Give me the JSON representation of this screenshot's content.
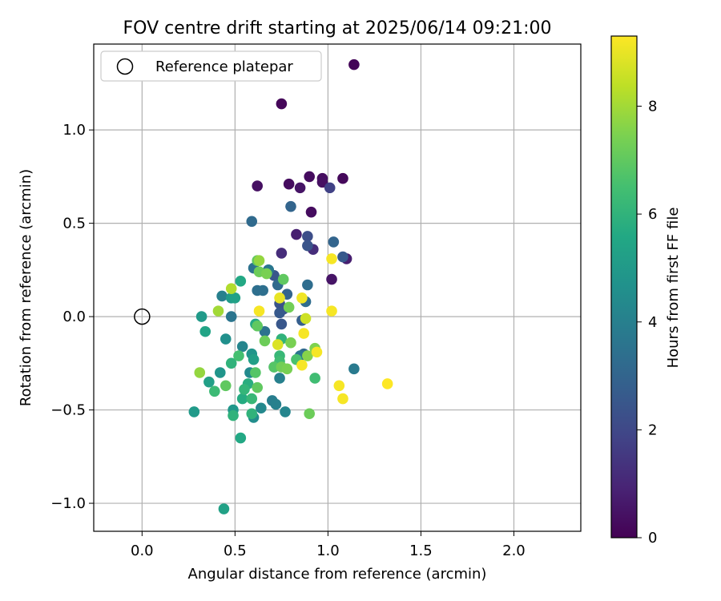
{
  "chart_data": {
    "type": "scatter",
    "title": "FOV centre drift starting at 2025/06/14 09:21:00",
    "xlabel": "Angular distance from reference (arcmin)",
    "ylabel": "Rotation from reference (arcmin)",
    "xlim": [
      -0.26,
      2.36
    ],
    "ylim": [
      -1.15,
      1.46
    ],
    "xticks": [
      0.0,
      0.5,
      1.0,
      1.5,
      2.0
    ],
    "xtick_labels": [
      "0.0",
      "0.5",
      "1.0",
      "1.5",
      "2.0"
    ],
    "yticks": [
      -1.0,
      -0.5,
      0.0,
      0.5,
      1.0
    ],
    "ytick_labels": [
      "−1.0",
      "−0.5",
      "0.0",
      "0.5",
      "1.0"
    ],
    "grid": true,
    "legend": {
      "placement": "upper-left",
      "entries": [
        "Reference platepar"
      ]
    },
    "reference_point": {
      "x": 0.0,
      "y": 0.0,
      "marker": "open-circle"
    },
    "colorbar": {
      "label": "Hours from first FF file",
      "colormap": "viridis",
      "range": [
        0,
        9.3
      ],
      "ticks": [
        0,
        2,
        4,
        6,
        8
      ],
      "tick_labels": [
        "0",
        "2",
        "4",
        "6",
        "8"
      ]
    },
    "series": [
      {
        "marker": "filled-circle",
        "colormap": "viridis",
        "points": [
          [
            1.14,
            1.35,
            0.1
          ],
          [
            0.75,
            1.14,
            0.15
          ],
          [
            1.08,
            0.74,
            0.2
          ],
          [
            0.9,
            0.75,
            0.3
          ],
          [
            0.97,
            0.74,
            0.35
          ],
          [
            0.97,
            0.72,
            0.4
          ],
          [
            0.79,
            0.71,
            0.3
          ],
          [
            0.85,
            0.69,
            0.5
          ],
          [
            0.62,
            0.7,
            0.4
          ],
          [
            0.91,
            0.56,
            0.3
          ],
          [
            1.02,
            0.2,
            0.5
          ],
          [
            1.1,
            0.31,
            0.8
          ],
          [
            0.83,
            0.44,
            0.8
          ],
          [
            0.75,
            0.34,
            1.2
          ],
          [
            0.92,
            0.36,
            1.2
          ],
          [
            1.01,
            0.69,
            1.8
          ],
          [
            0.89,
            0.43,
            2.2
          ],
          [
            0.89,
            0.38,
            2.4
          ],
          [
            1.08,
            0.32,
            2.6
          ],
          [
            1.03,
            0.4,
            3.0
          ],
          [
            0.8,
            0.59,
            3.0
          ],
          [
            0.59,
            0.51,
            3.2
          ],
          [
            0.71,
            0.22,
            2.5
          ],
          [
            0.74,
            0.07,
            2.4
          ],
          [
            0.76,
            0.04,
            2.3
          ],
          [
            0.75,
            -0.04,
            2.5
          ],
          [
            0.74,
            0.02,
            2.6
          ],
          [
            0.86,
            -0.02,
            2.8
          ],
          [
            0.78,
            0.12,
            3.0
          ],
          [
            0.73,
            0.17,
            3.2
          ],
          [
            0.89,
            0.17,
            3.3
          ],
          [
            0.62,
            0.14,
            3.4
          ],
          [
            0.65,
            0.14,
            3.4
          ],
          [
            0.6,
            0.26,
            3.5
          ],
          [
            0.68,
            0.25,
            3.6
          ],
          [
            0.68,
            0.25,
            3.6
          ],
          [
            0.68,
            0.25,
            3.7
          ],
          [
            0.66,
            -0.08,
            3.5
          ],
          [
            0.88,
            0.08,
            3.3
          ],
          [
            0.87,
            -0.2,
            3.2
          ],
          [
            0.85,
            -0.21,
            3.6
          ],
          [
            0.71,
            -0.27,
            3.8
          ],
          [
            0.74,
            -0.33,
            4.0
          ],
          [
            0.7,
            -0.45,
            3.9
          ],
          [
            0.72,
            -0.47,
            4.0
          ],
          [
            0.77,
            -0.51,
            4.2
          ],
          [
            0.48,
            0.0,
            3.6
          ],
          [
            0.43,
            0.11,
            4.0
          ],
          [
            0.54,
            -0.16,
            4.2
          ],
          [
            0.58,
            -0.3,
            4.4
          ],
          [
            0.6,
            -0.54,
            4.5
          ],
          [
            0.45,
            -0.12,
            4.6
          ],
          [
            0.59,
            -0.2,
            4.8
          ],
          [
            0.42,
            -0.3,
            4.8
          ],
          [
            0.49,
            -0.5,
            4.9
          ],
          [
            0.28,
            -0.51,
            5.0
          ],
          [
            0.36,
            -0.35,
            5.2
          ],
          [
            0.44,
            -1.03,
            5.3
          ],
          [
            0.53,
            -0.65,
            5.6
          ],
          [
            0.48,
            0.1,
            5.0
          ],
          [
            0.5,
            0.1,
            5.3
          ],
          [
            0.53,
            0.19,
            5.6
          ],
          [
            0.32,
            0.0,
            5.0
          ],
          [
            0.34,
            -0.08,
            5.4
          ],
          [
            0.61,
            -0.04,
            5.6
          ],
          [
            0.6,
            -0.23,
            5.2
          ],
          [
            0.54,
            -0.44,
            5.7
          ],
          [
            0.57,
            -0.36,
            5.8
          ],
          [
            0.59,
            -0.52,
            6.0
          ],
          [
            0.59,
            -0.44,
            6.2
          ],
          [
            0.49,
            -0.53,
            6.0
          ],
          [
            0.48,
            -0.25,
            6.0
          ],
          [
            0.52,
            -0.21,
            6.5
          ],
          [
            0.74,
            -0.21,
            6.2
          ],
          [
            0.74,
            -0.24,
            6.4
          ],
          [
            0.75,
            -0.12,
            6.0
          ],
          [
            0.83,
            -0.23,
            6.6
          ],
          [
            0.93,
            -0.33,
            6.4
          ],
          [
            0.55,
            -0.39,
            6.1
          ],
          [
            0.39,
            -0.4,
            6.3
          ],
          [
            0.61,
            -0.3,
            6.8
          ],
          [
            0.45,
            -0.37,
            7.0
          ],
          [
            0.62,
            -0.38,
            7.0
          ],
          [
            0.71,
            -0.27,
            6.8
          ],
          [
            0.76,
            0.2,
            7.0
          ],
          [
            0.62,
            0.3,
            7.0
          ],
          [
            0.63,
            0.24,
            7.2
          ],
          [
            0.67,
            0.23,
            7.4
          ],
          [
            0.79,
            0.05,
            7.3
          ],
          [
            0.62,
            -0.05,
            7.0
          ],
          [
            0.66,
            -0.13,
            7.2
          ],
          [
            0.75,
            -0.27,
            7.3
          ],
          [
            0.78,
            -0.28,
            7.4
          ],
          [
            0.8,
            -0.14,
            7.4
          ],
          [
            0.93,
            -0.17,
            7.5
          ],
          [
            0.89,
            -0.21,
            7.6
          ],
          [
            0.9,
            -0.52,
            7.2
          ],
          [
            0.31,
            -0.3,
            7.8
          ],
          [
            0.41,
            0.03,
            8.0
          ],
          [
            0.48,
            0.15,
            8.2
          ],
          [
            0.63,
            0.3,
            7.8
          ],
          [
            0.88,
            -0.01,
            8.6
          ],
          [
            0.73,
            -0.15,
            8.8
          ],
          [
            0.74,
            0.1,
            9.0
          ],
          [
            0.86,
            0.1,
            9.1
          ],
          [
            0.63,
            0.03,
            9.2
          ],
          [
            1.02,
            0.31,
            9.2
          ],
          [
            1.02,
            0.03,
            9.2
          ],
          [
            0.87,
            -0.09,
            9.2
          ],
          [
            0.94,
            -0.19,
            9.2
          ],
          [
            0.86,
            -0.26,
            9.2
          ],
          [
            1.06,
            -0.37,
            9.2
          ],
          [
            1.08,
            -0.44,
            9.2
          ],
          [
            1.32,
            -0.36,
            9.3
          ],
          [
            1.14,
            -0.28,
            3.8
          ],
          [
            0.64,
            -0.49,
            4.3
          ]
        ]
      }
    ]
  }
}
